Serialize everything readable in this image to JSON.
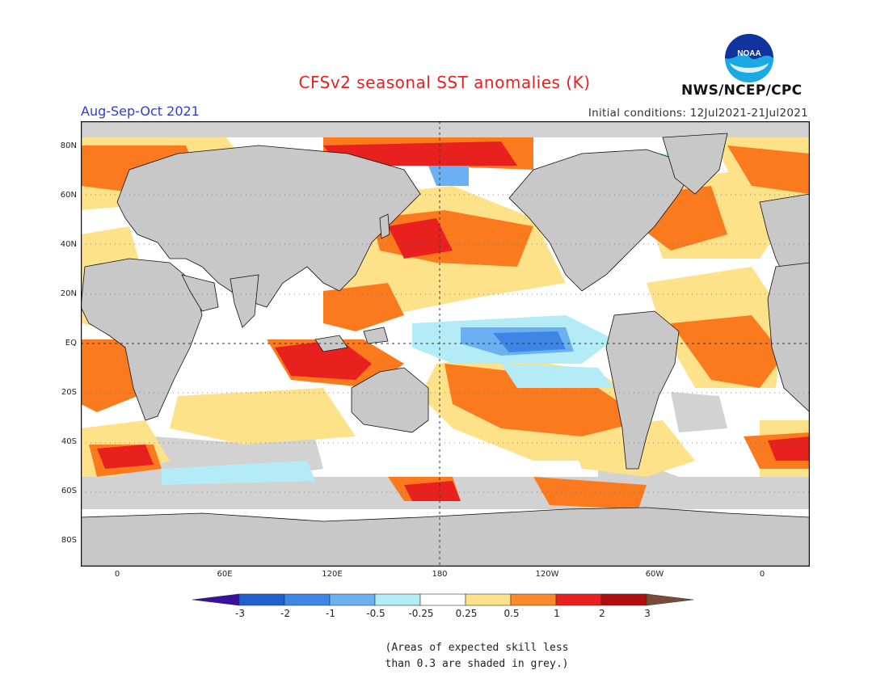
{
  "title": "CFSv2 seasonal SST anomalies (K)",
  "period": "Aug-Sep-Oct 2021",
  "initial_conditions": "Initial conditions: 12Jul2021-21Jul2021",
  "agency": "NWS/NCEP/CPC",
  "logo_text": "NOAA",
  "lat_labels": [
    "80N",
    "60N",
    "40N",
    "20N",
    "EQ",
    "20S",
    "40S",
    "60S",
    "80S"
  ],
  "lon_labels": [
    "0",
    "60E",
    "120E",
    "180",
    "120W",
    "60W",
    "0"
  ],
  "colorbar": {
    "labels": [
      "-3",
      "-2",
      "-1",
      "-0.5",
      "-0.25",
      "0.25",
      "0.5",
      "1",
      "2",
      "3"
    ],
    "colors": [
      "#3a0fa0",
      "#1f5fd0",
      "#3d86e6",
      "#6bb0f0",
      "#b3ecf7",
      "#ffffff",
      "#fde28a",
      "#fb8a2c",
      "#e8201e",
      "#b00d0d",
      "#7a4a38"
    ]
  },
  "note": [
    "(Areas of expected skill less",
    "than 0.3 are shaded in grey.)"
  ],
  "colors": {
    "land": "#c8c8c8",
    "skill_grey": "#d2d2d2",
    "warm_light": "#fde28a",
    "warm": "#fb7a1e",
    "hot": "#e8201e",
    "very_hot": "#b00d0d",
    "cool_light": "#b3ecf7",
    "cool": "#6bb0f0",
    "cold": "#3d86e6"
  }
}
